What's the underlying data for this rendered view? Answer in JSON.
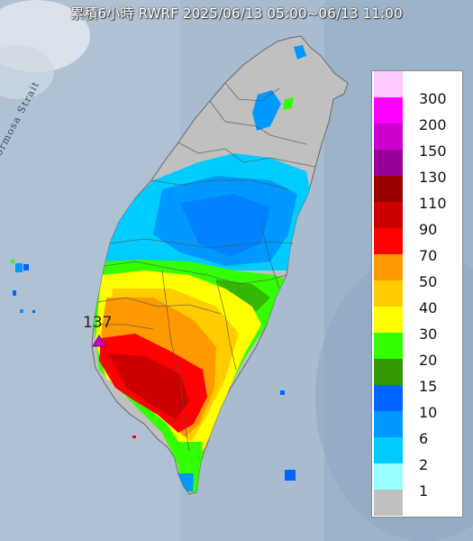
{
  "title": "累積6小時 RWRF 2025/06/13 05:00~06/13 11:00",
  "strait_label": "Formosa Strait",
  "max_value_label": "137",
  "legend": [
    {
      "label": "300",
      "color": "#ffc8ff"
    },
    {
      "label": "200",
      "color": "#ff00ff"
    },
    {
      "label": "150",
      "color": "#cc00cc"
    },
    {
      "label": "130",
      "color": "#990099"
    },
    {
      "label": "110",
      "color": "#990000"
    },
    {
      "label": "90",
      "color": "#cc0000"
    },
    {
      "label": "70",
      "color": "#ff0000"
    },
    {
      "label": "50",
      "color": "#ff9900"
    },
    {
      "label": "40",
      "color": "#ffcc00"
    },
    {
      "label": "30",
      "color": "#ffff00"
    },
    {
      "label": "20",
      "color": "#33ff00"
    },
    {
      "label": "15",
      "color": "#339900"
    },
    {
      "label": "10",
      "color": "#0066ff"
    },
    {
      "label": "6",
      "color": "#0099ff"
    },
    {
      "label": "2",
      "color": "#00ccff"
    },
    {
      "label": "1",
      "color": "#99ffff"
    },
    {
      "label": "",
      "color": "#c0c0c0"
    }
  ]
}
